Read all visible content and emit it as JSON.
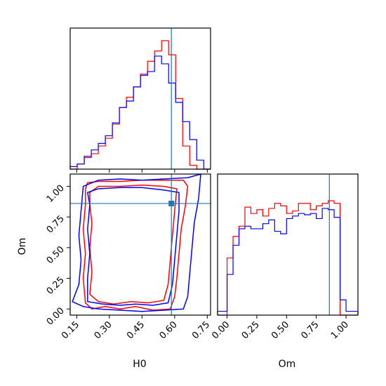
{
  "chart_data": [
    {
      "type": "histogram",
      "panel": "H0 marginal",
      "x_range": [
        0.12,
        0.765
      ],
      "truth": 0.585,
      "bins": [
        0.12,
        0.1523,
        0.1846,
        0.2169,
        0.2492,
        0.2815,
        0.3138,
        0.3461,
        0.3784,
        0.4107,
        0.443,
        0.4753,
        0.5076,
        0.5399,
        0.5722,
        0.6045,
        0.6368,
        0.6691,
        0.7014,
        0.7337,
        0.765
      ],
      "series": [
        {
          "color": "#ff0000",
          "values": [
            0.0,
            0.04,
            0.09,
            0.12,
            0.18,
            0.24,
            0.35,
            0.48,
            0.56,
            0.64,
            0.74,
            0.84,
            0.92,
            1.0,
            0.89,
            0.55,
            0.18,
            0.03,
            0.0,
            0.0
          ]
        },
        {
          "color": "#0000ff",
          "values": [
            0.02,
            0.04,
            0.1,
            0.15,
            0.2,
            0.26,
            0.36,
            0.48,
            0.53,
            0.64,
            0.73,
            0.76,
            0.88,
            0.82,
            0.67,
            0.52,
            0.37,
            0.23,
            0.07,
            0.0
          ]
        }
      ],
      "xticks": [
        "0.15",
        "0.30",
        "0.45",
        "0.60",
        "0.75"
      ]
    },
    {
      "type": "contour",
      "panel": "H0 vs Om",
      "xlabel": "H0",
      "ylabel": "Om",
      "x_range": [
        0.12,
        0.765
      ],
      "y_range": [
        -0.05,
        1.1
      ],
      "x_ticks": [
        {
          "value": 0.15,
          "label": "0.15"
        },
        {
          "value": 0.3,
          "label": "0.30"
        },
        {
          "value": 0.45,
          "label": "0.45"
        },
        {
          "value": 0.6,
          "label": "0.60"
        },
        {
          "value": 0.75,
          "label": "0.75"
        }
      ],
      "y_ticks": [
        {
          "value": 0.0,
          "label": "0.00"
        },
        {
          "value": 0.25,
          "label": "0.25"
        },
        {
          "value": 0.5,
          "label": "0.50"
        },
        {
          "value": 0.75,
          "label": "0.75"
        },
        {
          "value": 1.0,
          "label": "1.00"
        }
      ],
      "truth": {
        "x": 0.585,
        "y": 0.86
      },
      "contours": [
        {
          "color": "#ff0000",
          "points": [
            [
              0.19,
              0.98
            ],
            [
              0.2,
              1.03
            ],
            [
              0.25,
              1.04
            ],
            [
              0.35,
              1.04
            ],
            [
              0.45,
              1.05
            ],
            [
              0.55,
              1.05
            ],
            [
              0.64,
              1.05
            ],
            [
              0.66,
              1.0
            ],
            [
              0.65,
              0.85
            ],
            [
              0.63,
              0.65
            ],
            [
              0.62,
              0.45
            ],
            [
              0.61,
              0.25
            ],
            [
              0.6,
              0.1
            ],
            [
              0.58,
              0.0
            ],
            [
              0.5,
              -0.01
            ],
            [
              0.42,
              0.02
            ],
            [
              0.35,
              0.0
            ],
            [
              0.28,
              0.02
            ],
            [
              0.22,
              0.0
            ],
            [
              0.19,
              0.05
            ],
            [
              0.18,
              0.25
            ],
            [
              0.19,
              0.45
            ],
            [
              0.18,
              0.65
            ],
            [
              0.19,
              0.85
            ]
          ]
        },
        {
          "color": "#ff0000",
          "points": [
            [
              0.21,
              0.95
            ],
            [
              0.25,
              1.0
            ],
            [
              0.35,
              1.0
            ],
            [
              0.45,
              1.01
            ],
            [
              0.55,
              1.0
            ],
            [
              0.61,
              0.98
            ],
            [
              0.6,
              0.8
            ],
            [
              0.59,
              0.6
            ],
            [
              0.58,
              0.4
            ],
            [
              0.57,
              0.2
            ],
            [
              0.55,
              0.07
            ],
            [
              0.48,
              0.05
            ],
            [
              0.4,
              0.06
            ],
            [
              0.32,
              0.04
            ],
            [
              0.25,
              0.06
            ],
            [
              0.21,
              0.12
            ],
            [
              0.22,
              0.3
            ],
            [
              0.21,
              0.5
            ],
            [
              0.22,
              0.7
            ],
            [
              0.21,
              0.85
            ]
          ]
        },
        {
          "color": "#0000ff",
          "points": [
            [
              0.18,
              1.0
            ],
            [
              0.25,
              1.05
            ],
            [
              0.35,
              1.06
            ],
            [
              0.45,
              1.05
            ],
            [
              0.55,
              1.06
            ],
            [
              0.66,
              1.07
            ],
            [
              0.72,
              1.1
            ],
            [
              0.71,
              0.9
            ],
            [
              0.69,
              0.7
            ],
            [
              0.68,
              0.5
            ],
            [
              0.67,
              0.3
            ],
            [
              0.66,
              0.1
            ],
            [
              0.64,
              0.0
            ],
            [
              0.55,
              -0.01
            ],
            [
              0.45,
              -0.02
            ],
            [
              0.35,
              -0.01
            ],
            [
              0.25,
              0.0
            ],
            [
              0.18,
              0.02
            ],
            [
              0.13,
              0.06
            ],
            [
              0.16,
              0.2
            ],
            [
              0.17,
              0.4
            ],
            [
              0.16,
              0.6
            ],
            [
              0.17,
              0.8
            ]
          ]
        },
        {
          "color": "#0000ff",
          "points": [
            [
              0.2,
              0.95
            ],
            [
              0.25,
              0.98
            ],
            [
              0.35,
              0.99
            ],
            [
              0.45,
              0.99
            ],
            [
              0.55,
              0.97
            ],
            [
              0.62,
              0.95
            ],
            [
              0.62,
              0.8
            ],
            [
              0.61,
              0.6
            ],
            [
              0.6,
              0.4
            ],
            [
              0.59,
              0.2
            ],
            [
              0.57,
              0.05
            ],
            [
              0.5,
              0.03
            ],
            [
              0.42,
              0.04
            ],
            [
              0.35,
              0.03
            ],
            [
              0.27,
              0.04
            ],
            [
              0.2,
              0.06
            ],
            [
              0.2,
              0.25
            ],
            [
              0.21,
              0.45
            ],
            [
              0.2,
              0.65
            ],
            [
              0.21,
              0.85
            ]
          ]
        }
      ]
    },
    {
      "type": "histogram",
      "panel": "Om marginal",
      "xlabel": "Om",
      "x_range": [
        -0.08,
        1.1
      ],
      "truth": 0.86,
      "bins": [
        -0.08,
        0.0,
        0.05,
        0.1,
        0.15,
        0.2,
        0.25,
        0.3,
        0.35,
        0.4,
        0.45,
        0.5,
        0.55,
        0.6,
        0.65,
        0.7,
        0.75,
        0.8,
        0.85,
        0.9,
        0.95,
        1.0,
        1.1
      ],
      "series": [
        {
          "color": "#ff0000",
          "values": [
            0.0,
            0.45,
            0.62,
            0.7,
            0.85,
            0.8,
            0.83,
            0.78,
            0.84,
            0.88,
            0.86,
            0.8,
            0.82,
            0.88,
            0.88,
            0.83,
            0.86,
            0.88,
            0.9,
            0.88,
            0.0,
            0.0
          ]
        },
        {
          "color": "#0000ff",
          "values": [
            0.03,
            0.32,
            0.55,
            0.68,
            0.7,
            0.68,
            0.68,
            0.72,
            0.75,
            0.66,
            0.64,
            0.76,
            0.78,
            0.8,
            0.79,
            0.8,
            0.76,
            0.84,
            0.83,
            0.77,
            0.12,
            0.03
          ]
        }
      ],
      "xticks": [
        {
          "value": 0.0,
          "label": "0.00"
        },
        {
          "value": 0.25,
          "label": "0.25"
        },
        {
          "value": 0.5,
          "label": "0.50"
        },
        {
          "value": 0.75,
          "label": "0.75"
        },
        {
          "value": 1.0,
          "label": "1.00"
        }
      ]
    }
  ]
}
